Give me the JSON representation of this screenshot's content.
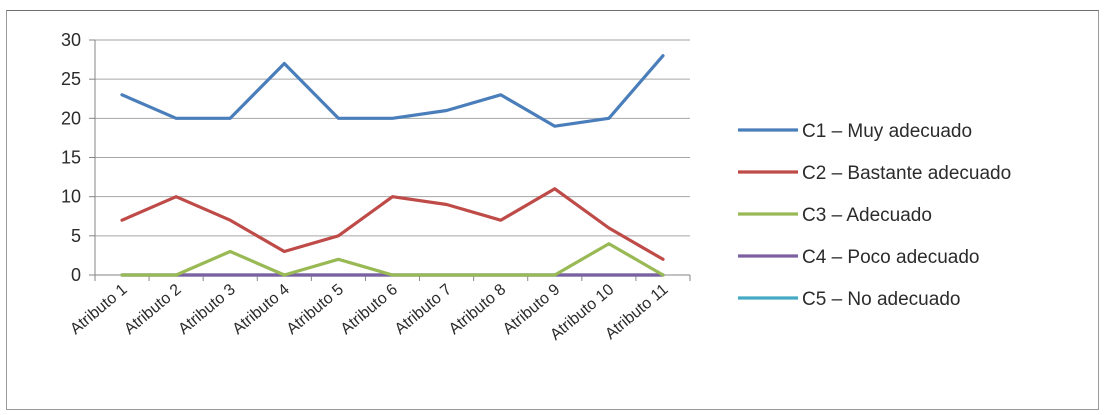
{
  "chart_data": {
    "type": "line",
    "categories": [
      "Atributo 1",
      "Atributo 2",
      "Atributo 3",
      "Atributo 4",
      "Atributo 5",
      "Atributo 6",
      "Atributo 7",
      "Atributo 8",
      "Atributo 9",
      "Atributo 10",
      "Atributo 11"
    ],
    "ylim": [
      0,
      30
    ],
    "yticks": [
      0,
      5,
      10,
      15,
      20,
      25,
      30
    ],
    "grid": true,
    "legend_position": "right",
    "series": [
      {
        "name": "C1 – Muy adecuado",
        "color": "#4a7ebb",
        "values": [
          23,
          20,
          20,
          27,
          20,
          20,
          21,
          23,
          19,
          20,
          28
        ]
      },
      {
        "name": "C2 – Bastante adecuado",
        "color": "#be4b48",
        "values": [
          7,
          10,
          7,
          3,
          5,
          10,
          9,
          7,
          11,
          6,
          2
        ]
      },
      {
        "name": "C3 – Adecuado",
        "color": "#98b954",
        "values": [
          0,
          0,
          3,
          0,
          2,
          0,
          0,
          0,
          0,
          4,
          0
        ]
      },
      {
        "name": "C4 – Poco adecuado",
        "color": "#7d60a0",
        "values": [
          0,
          0,
          0,
          0,
          0,
          0,
          0,
          0,
          0,
          0,
          0
        ]
      },
      {
        "name": "C5 – No adecuado",
        "color": "#46aac5",
        "values": [
          0,
          0,
          0,
          0,
          0,
          0,
          0,
          0,
          0,
          0,
          0
        ]
      }
    ]
  }
}
